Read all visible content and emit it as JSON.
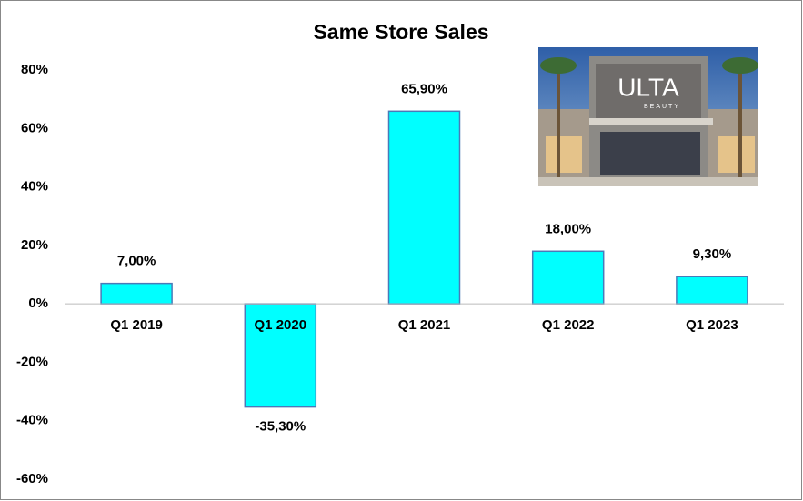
{
  "chart_data": {
    "type": "bar",
    "title": "Same Store Sales",
    "categories": [
      "Q1 2019",
      "Q1 2020",
      "Q1 2021",
      "Q1 2022",
      "Q1 2023"
    ],
    "values": [
      7,
      -35.3,
      65.9,
      18,
      9.3
    ],
    "value_labels": [
      "7,00%",
      "-35,30%",
      "65,90%",
      "18,00%",
      "9,30%"
    ],
    "color": "#00ffff",
    "ylim": [
      -60,
      80
    ],
    "yticks": [
      {
        "value": -60,
        "label": "-60%"
      },
      {
        "value": -40,
        "label": "-40%"
      },
      {
        "value": -20,
        "label": "-20%"
      },
      {
        "value": 0,
        "label": "0%"
      },
      {
        "value": 20,
        "label": "20%"
      },
      {
        "value": 40,
        "label": "40%"
      },
      {
        "value": 60,
        "label": "60%"
      },
      {
        "value": 80,
        "label": "80%"
      }
    ],
    "grid": false
  },
  "photo": {
    "sign": "ULTA",
    "subsign": "BEAUTY"
  }
}
